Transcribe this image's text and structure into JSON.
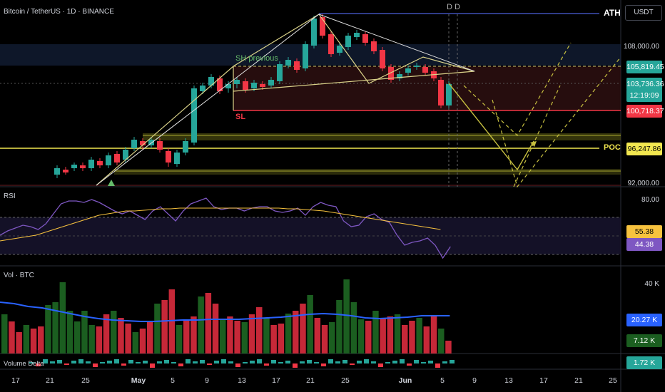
{
  "header": {
    "title": "Bitcoin / TetherUS · 1D · BINANCE"
  },
  "currency_button": "USDT",
  "price_axis": {
    "labels": [
      "108,000.00",
      "92,000.00"
    ],
    "tags": [
      {
        "text": "105,819.45",
        "bg": "#26a69a",
        "fg": "#ffffff"
      },
      {
        "text": "103,736.36",
        "bg": "#26a69a",
        "fg": "#ffffff"
      },
      {
        "text": "12:19:09",
        "bg": "#26a69a",
        "fg": "#ffffff"
      },
      {
        "text": "100,718.37",
        "bg": "#f23645",
        "fg": "#ffffff"
      },
      {
        "text": "96,247.86",
        "bg": "#f2e750",
        "fg": "#000000"
      }
    ]
  },
  "annotations": {
    "ath": "ATH",
    "poc": "POC",
    "sh_previous": "SH previous",
    "sl": "SL",
    "d_marks": "D  D"
  },
  "rsi_pane": {
    "label": "RSI",
    "axis_top": "80.00",
    "tag_ma": "55.38",
    "tag_rsi": "44.38",
    "ma_color": "#f7c23e",
    "rsi_color": "#7e57c2"
  },
  "volume_pane": {
    "label": "Vol · BTC",
    "axis_top": "40 K",
    "tag_ma": "20.27 K",
    "tag_vol": "7.12 K"
  },
  "delta_pane": {
    "label": "Volume Delta",
    "tag": "1.72 K"
  },
  "time_axis": {
    "labels": [
      "17",
      "21",
      "25",
      "May",
      "5",
      "9",
      "13",
      "17",
      "21",
      "25",
      "Jun",
      "5",
      "9",
      "13",
      "17",
      "21",
      "25"
    ]
  },
  "colors": {
    "up": "#26a69a",
    "down": "#f23645",
    "vol_up": "#1b5e20",
    "vol_down": "#c62838",
    "vol_ma": "#2962ff",
    "ath_line": "#3f51b5",
    "poc_line": "#f2e750"
  }
}
